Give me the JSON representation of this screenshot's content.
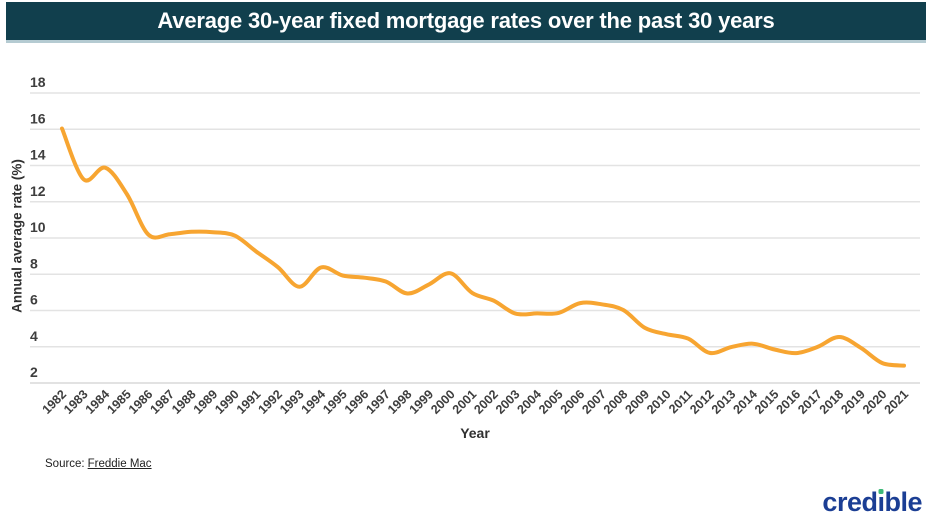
{
  "banner": {
    "title": "Average 30-year fixed mortgage rates over the past 30 years"
  },
  "colors": {
    "banner_bg": "#113F4D",
    "banner_text": "#FFFFFF",
    "banner_edge": "#B5CBD2",
    "line": "#F7A531",
    "grid": "#E3E3E3",
    "axis_text": "#3E3E3E",
    "logo_blue": "#1B3E94",
    "logo_green": "#3DB878"
  },
  "footer": {
    "source_prefix": "Source:",
    "source_link_text": "Freddie Mac",
    "logo_full": "credible",
    "logo_text_pre": "cred",
    "logo_i_stem": "ı",
    "logo_text_post": "ble"
  },
  "chart_data": {
    "type": "line",
    "title": "Average 30-year fixed mortgage rates over the past 30 years",
    "xlabel": "Year",
    "ylabel": "Annual average rate (%)",
    "ylim": [
      2,
      18
    ],
    "yticks": [
      2,
      4,
      6,
      8,
      10,
      12,
      14,
      16,
      18
    ],
    "grid": true,
    "legend": "none",
    "line_color": "#F7A531",
    "smooth": true,
    "categories": [
      "1982",
      "1983",
      "1984",
      "1985",
      "1986",
      "1987",
      "1988",
      "1989",
      "1990",
      "1991",
      "1992",
      "1993",
      "1994",
      "1995",
      "1996",
      "1997",
      "1998",
      "1999",
      "2000",
      "2001",
      "2002",
      "2003",
      "2004",
      "2005",
      "2006",
      "2007",
      "2008",
      "2009",
      "2010",
      "2011",
      "2012",
      "2013",
      "2014",
      "2015",
      "2016",
      "2017",
      "2018",
      "2019",
      "2020",
      "2021"
    ],
    "values": [
      16.04,
      13.24,
      13.88,
      12.43,
      10.19,
      10.21,
      10.34,
      10.32,
      10.13,
      9.25,
      8.39,
      7.31,
      8.38,
      7.93,
      7.81,
      7.6,
      6.94,
      7.44,
      8.05,
      6.97,
      6.54,
      5.83,
      5.84,
      5.87,
      6.41,
      6.34,
      6.03,
      5.04,
      4.69,
      4.45,
      3.66,
      3.98,
      4.17,
      3.85,
      3.65,
      3.99,
      4.54,
      3.94,
      3.1,
      2.96
    ]
  }
}
